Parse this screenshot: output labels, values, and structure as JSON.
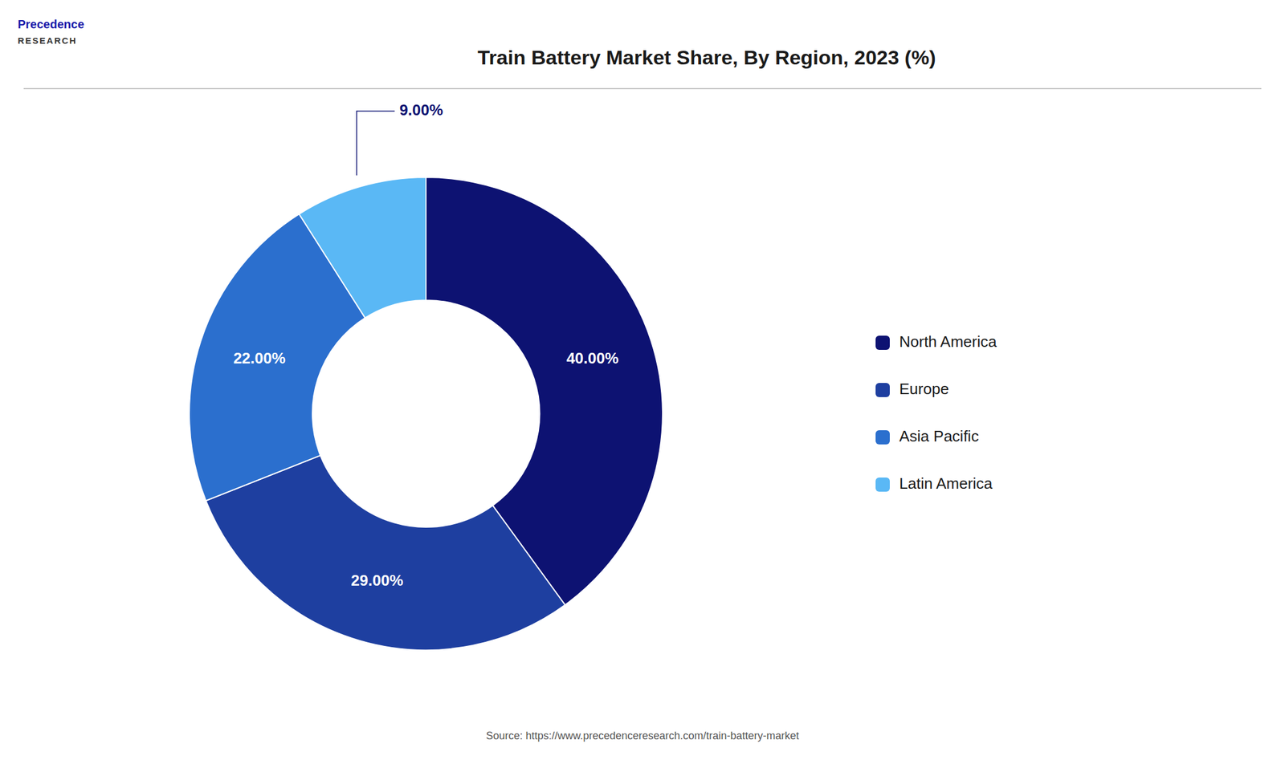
{
  "chart_data": {
    "type": "pie",
    "title": "Train Battery Market Share, By Region, 2023 (%)",
    "categories": [
      "North America",
      "Europe",
      "Asia Pacific",
      "Latin America"
    ],
    "values": [
      40.0,
      29.0,
      22.0,
      9.0
    ],
    "value_labels": [
      "40.00%",
      "29.00%",
      "22.00%",
      "9.00%"
    ],
    "colors": [
      "#0d1272",
      "#1e3fa0",
      "#2b6fce",
      "#5ab8f5"
    ],
    "data_labels": true,
    "legend": "right",
    "annotations": [
      "Precedence",
      "RESEARCH",
      "Source: https://www.precedenceresearch.com/train-battery-market"
    ]
  }
}
